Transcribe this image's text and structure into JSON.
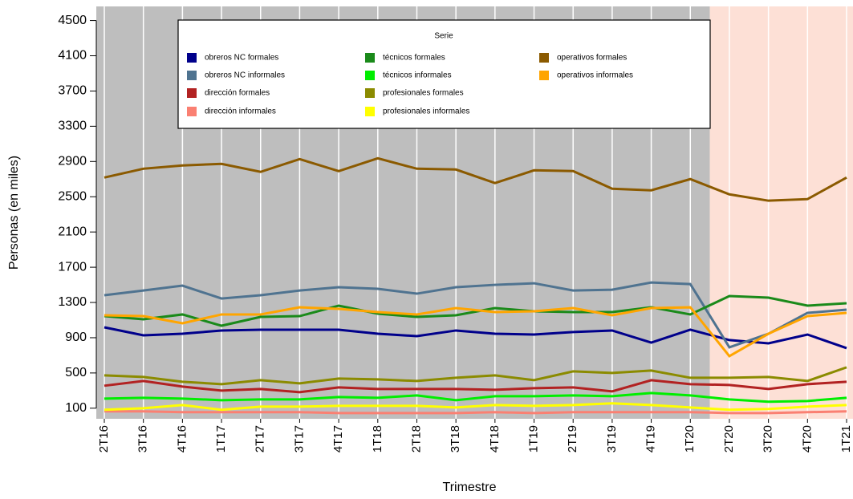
{
  "chart_data": {
    "type": "line",
    "x_label": "Trimestre",
    "y_label": "Personas (en miles)",
    "legend_title": "Serie",
    "categories": [
      "2T16",
      "3T16",
      "4T16",
      "1T17",
      "2T17",
      "3T17",
      "4T17",
      "1T18",
      "2T18",
      "3T18",
      "4T18",
      "1T19",
      "2T19",
      "3T19",
      "4T19",
      "1T20",
      "2T20",
      "3T20",
      "4T20",
      "1T21"
    ],
    "ylim": [
      -20,
      4660
    ],
    "yticks": [
      100,
      500,
      900,
      1300,
      1700,
      2100,
      2500,
      2900,
      3300,
      3700,
      4100,
      4500
    ],
    "grid": true,
    "legend": "top",
    "series": [
      {
        "name": "obreros NC formales",
        "color": "#00008b",
        "values": [
          1018,
          927,
          945,
          982,
          991,
          991,
          991,
          945,
          918,
          982,
          945,
          936,
          964,
          982,
          845,
          991,
          873,
          836,
          936,
          782
        ]
      },
      {
        "name": "obreros NC informales",
        "color": "#4f7390",
        "values": [
          1382,
          1436,
          1491,
          1345,
          1382,
          1436,
          1473,
          1455,
          1400,
          1473,
          1500,
          1518,
          1436,
          1445,
          1527,
          1509,
          791,
          945,
          1182,
          1218
        ]
      },
      {
        "name": "dirección formales",
        "color": "#b22222",
        "values": [
          355,
          409,
          345,
          300,
          318,
          282,
          336,
          318,
          318,
          318,
          309,
          327,
          336,
          291,
          418,
          373,
          364,
          318,
          373,
          400
        ]
      },
      {
        "name": "dirección informales",
        "color": "#fa8072",
        "values": [
          64,
          64,
          55,
          55,
          55,
          55,
          45,
          45,
          45,
          45,
          55,
          45,
          55,
          55,
          55,
          55,
          45,
          45,
          55,
          64
        ]
      },
      {
        "name": "técnicos formales",
        "color": "#1a8a1a",
        "values": [
          1145,
          1109,
          1164,
          1036,
          1136,
          1145,
          1264,
          1173,
          1136,
          1155,
          1236,
          1200,
          1191,
          1191,
          1245,
          1164,
          1373,
          1355,
          1264,
          1291
        ]
      },
      {
        "name": "técnicos informales",
        "color": "#00ee00",
        "values": [
          209,
          218,
          209,
          191,
          200,
          200,
          227,
          218,
          245,
          191,
          236,
          236,
          245,
          236,
          273,
          245,
          200,
          173,
          182,
          218
        ]
      },
      {
        "name": "profesionales formales",
        "color": "#8b8b00",
        "values": [
          473,
          455,
          400,
          373,
          418,
          382,
          436,
          427,
          409,
          445,
          473,
          418,
          518,
          500,
          527,
          445,
          445,
          455,
          409,
          564
        ]
      },
      {
        "name": "profesionales informales",
        "color": "#ffff00",
        "values": [
          82,
          100,
          136,
          82,
          118,
          118,
          127,
          127,
          127,
          109,
          136,
          127,
          136,
          155,
          136,
          109,
          82,
          91,
          118,
          136
        ]
      },
      {
        "name": "operativos formales",
        "color": "#8b5a00",
        "values": [
          2718,
          2818,
          2855,
          2873,
          2782,
          2927,
          2791,
          2936,
          2818,
          2809,
          2655,
          2800,
          2791,
          2591,
          2573,
          2700,
          2527,
          2455,
          2473,
          2718
        ]
      },
      {
        "name": "operativos informales",
        "color": "#ffa500",
        "values": [
          1155,
          1145,
          1064,
          1164,
          1164,
          1245,
          1227,
          1191,
          1164,
          1236,
          1191,
          1200,
          1236,
          1155,
          1236,
          1245,
          691,
          945,
          1145,
          1182
        ]
      }
    ]
  }
}
